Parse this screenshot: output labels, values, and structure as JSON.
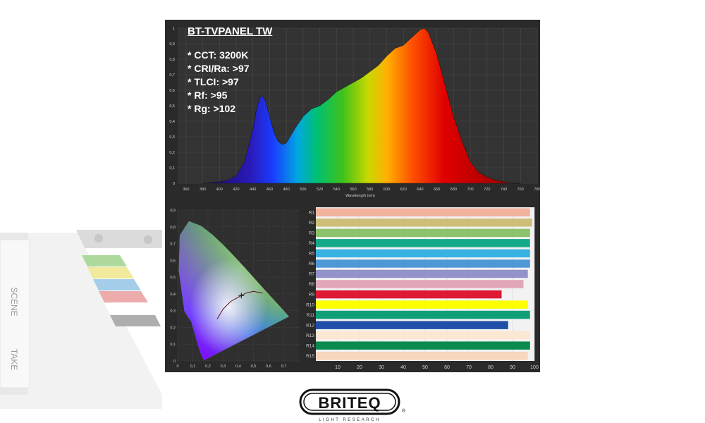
{
  "brand": {
    "name": "BRITEQ",
    "tagline": "LIGHT RESEARCH"
  },
  "background_prop": {
    "slate_labels": [
      "SCENE",
      "TAKE"
    ]
  },
  "chart_data": [
    {
      "type": "area",
      "title": "BT-TVPANEL TW",
      "specs": [
        "* CCT: 3200K",
        "* CRI/Ra: >97",
        "* TLCI: >97",
        "* Rf: >95",
        "* Rg: >102"
      ],
      "xlabel": "Wavelength (nm)",
      "ylabel": "",
      "xlim": [
        350,
        780
      ],
      "ylim": [
        0,
        1.0
      ],
      "x_ticks": [
        360,
        380,
        400,
        420,
        440,
        460,
        480,
        500,
        520,
        540,
        560,
        580,
        600,
        620,
        640,
        660,
        680,
        700,
        720,
        740,
        760,
        780
      ],
      "y_ticks": [
        "0",
        "0,1",
        "0,2",
        "0,3",
        "0,4",
        "0,5",
        "0,6",
        "0,7",
        "0,8",
        "0,9",
        "1"
      ],
      "grid": true,
      "x": [
        380,
        400,
        410,
        420,
        430,
        440,
        445,
        450,
        455,
        460,
        465,
        470,
        475,
        480,
        490,
        500,
        510,
        520,
        530,
        540,
        550,
        560,
        570,
        580,
        590,
        600,
        610,
        620,
        630,
        640,
        645,
        650,
        660,
        670,
        680,
        690,
        700,
        710,
        720,
        730,
        740,
        750,
        760
      ],
      "values": [
        0.0,
        0.01,
        0.02,
        0.05,
        0.14,
        0.35,
        0.5,
        0.57,
        0.53,
        0.43,
        0.33,
        0.27,
        0.25,
        0.26,
        0.35,
        0.43,
        0.48,
        0.5,
        0.54,
        0.59,
        0.62,
        0.65,
        0.68,
        0.72,
        0.76,
        0.82,
        0.87,
        0.89,
        0.94,
        0.99,
        1.0,
        0.97,
        0.83,
        0.63,
        0.43,
        0.27,
        0.14,
        0.07,
        0.04,
        0.02,
        0.01,
        0.0,
        0.0
      ]
    },
    {
      "type": "scatter",
      "title": "",
      "xlim": [
        0,
        0.8
      ],
      "ylim": [
        0,
        0.9
      ],
      "x_ticks": [
        "0",
        "0,1",
        "0,2",
        "0,3",
        "0,4",
        "0,5",
        "0,6",
        "0,7"
      ],
      "y_ticks": [
        "0",
        "0,1",
        "0,2",
        "0,3",
        "0,4",
        "0,5",
        "0,6",
        "0,7",
        "0,8",
        "0,9"
      ],
      "grid": true,
      "locus": [
        [
          0.175,
          0.005
        ],
        [
          0.17,
          0.01
        ],
        [
          0.163,
          0.023
        ],
        [
          0.154,
          0.041
        ],
        [
          0.139,
          0.081
        ],
        [
          0.12,
          0.138
        ],
        [
          0.091,
          0.233
        ],
        [
          0.045,
          0.295
        ],
        [
          0.008,
          0.538
        ],
        [
          0.014,
          0.75
        ],
        [
          0.074,
          0.834
        ],
        [
          0.155,
          0.806
        ],
        [
          0.229,
          0.754
        ],
        [
          0.302,
          0.692
        ],
        [
          0.374,
          0.624
        ],
        [
          0.444,
          0.555
        ],
        [
          0.512,
          0.487
        ],
        [
          0.575,
          0.424
        ],
        [
          0.627,
          0.372
        ],
        [
          0.666,
          0.334
        ],
        [
          0.692,
          0.308
        ],
        [
          0.735,
          0.265
        ]
      ],
      "planckian": [
        [
          0.26,
          0.25
        ],
        [
          0.3,
          0.31
        ],
        [
          0.35,
          0.355
        ],
        [
          0.4,
          0.38
        ],
        [
          0.45,
          0.405
        ],
        [
          0.5,
          0.415
        ],
        [
          0.56,
          0.405
        ]
      ],
      "point": {
        "x": 0.42,
        "y": 0.39
      }
    },
    {
      "type": "bar",
      "orientation": "horizontal",
      "categories": [
        "R1",
        "R2",
        "R3",
        "R4",
        "R5",
        "R6",
        "R7",
        "R8",
        "R9",
        "R10",
        "R11",
        "R12",
        "R13",
        "R14",
        "R15"
      ],
      "values": [
        98,
        99,
        98,
        98,
        98,
        98,
        97,
        95,
        85,
        97,
        98,
        88,
        98,
        98,
        97
      ],
      "colors": [
        "#f2b39e",
        "#cdbf78",
        "#8cc26b",
        "#15a98a",
        "#38b2e1",
        "#4f98d8",
        "#9393c9",
        "#e1a7b9",
        "#dd1934",
        "#ffff00",
        "#0fa078",
        "#1f4fa9",
        "#fbe7d3",
        "#098a4e",
        "#f7d7bd"
      ],
      "xlim": [
        0,
        100
      ],
      "x_ticks": [
        10,
        20,
        30,
        40,
        50,
        60,
        70,
        80,
        90,
        100
      ],
      "grid": true
    }
  ]
}
